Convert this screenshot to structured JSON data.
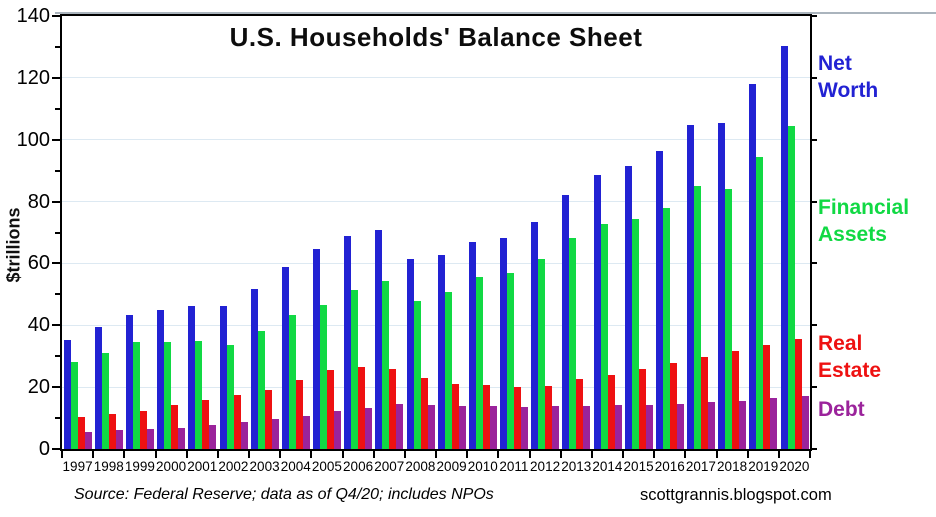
{
  "chart_data": {
    "type": "bar",
    "title": "U.S. Households' Balance Sheet",
    "ylabel": "$trillions",
    "ylim": [
      0,
      140
    ],
    "y_major_step": 20,
    "y_minor_step": 10,
    "grid": "horizontal light-blue gridlines every 20",
    "legend_position": "right, colored text labels",
    "categories": [
      "1997",
      "1998",
      "1999",
      "2000",
      "2001",
      "2002",
      "2003",
      "2004",
      "2005",
      "2006",
      "2007",
      "2008",
      "2009",
      "2010",
      "2011",
      "2012",
      "2013",
      "2014",
      "2015",
      "2016",
      "2017",
      "2018",
      "2019",
      "2020"
    ],
    "series": [
      {
        "name": "Net Worth",
        "label_lines": [
          "Net",
          "Worth"
        ],
        "color": "#2222d3",
        "values": [
          35.4,
          39.5,
          43.3,
          44.9,
          46.4,
          46.4,
          51.8,
          59.0,
          64.8,
          69.0,
          70.7,
          61.5,
          62.8,
          67.0,
          68.3,
          73.5,
          82.0,
          88.5,
          91.5,
          96.5,
          104.8,
          105.5,
          118.0,
          130.2
        ]
      },
      {
        "name": "Financial Assets",
        "label_lines": [
          "Financial",
          "Assets"
        ],
        "color": "#11d944",
        "values": [
          28.0,
          31.0,
          34.5,
          34.6,
          34.8,
          33.6,
          38.1,
          43.4,
          46.6,
          51.3,
          54.4,
          47.7,
          50.8,
          55.6,
          57.0,
          61.5,
          68.2,
          72.9,
          74.4,
          78.0,
          84.9,
          84.2,
          94.4,
          104.5
        ]
      },
      {
        "name": "Real Estate",
        "label_lines": [
          "Real",
          "Estate"
        ],
        "color": "#ee1111",
        "values": [
          10.3,
          11.4,
          12.3,
          14.2,
          15.8,
          17.5,
          19.0,
          22.4,
          25.5,
          26.6,
          25.8,
          22.9,
          21.0,
          20.7,
          20.0,
          20.5,
          22.5,
          24.0,
          25.9,
          27.7,
          29.9,
          31.8,
          33.7,
          35.7
        ]
      },
      {
        "name": "Debt",
        "label_lines": [
          "Debt"
        ],
        "color": "#9b239b",
        "values": [
          5.6,
          6.2,
          6.5,
          6.9,
          7.8,
          8.6,
          9.6,
          10.7,
          12.2,
          13.2,
          14.5,
          14.2,
          14.0,
          14.0,
          13.6,
          13.8,
          14.0,
          14.2,
          14.3,
          14.6,
          15.2,
          15.6,
          16.5,
          17.1
        ]
      }
    ]
  },
  "footer": {
    "source": "Source: Federal Reserve; data as of Q4/20; includes NPOs",
    "credit": "scottgrannis.blogspot.com"
  },
  "colors": {
    "gridline": "#dde9f2",
    "frame": "#000000",
    "top_rule": "#aab4bd"
  }
}
